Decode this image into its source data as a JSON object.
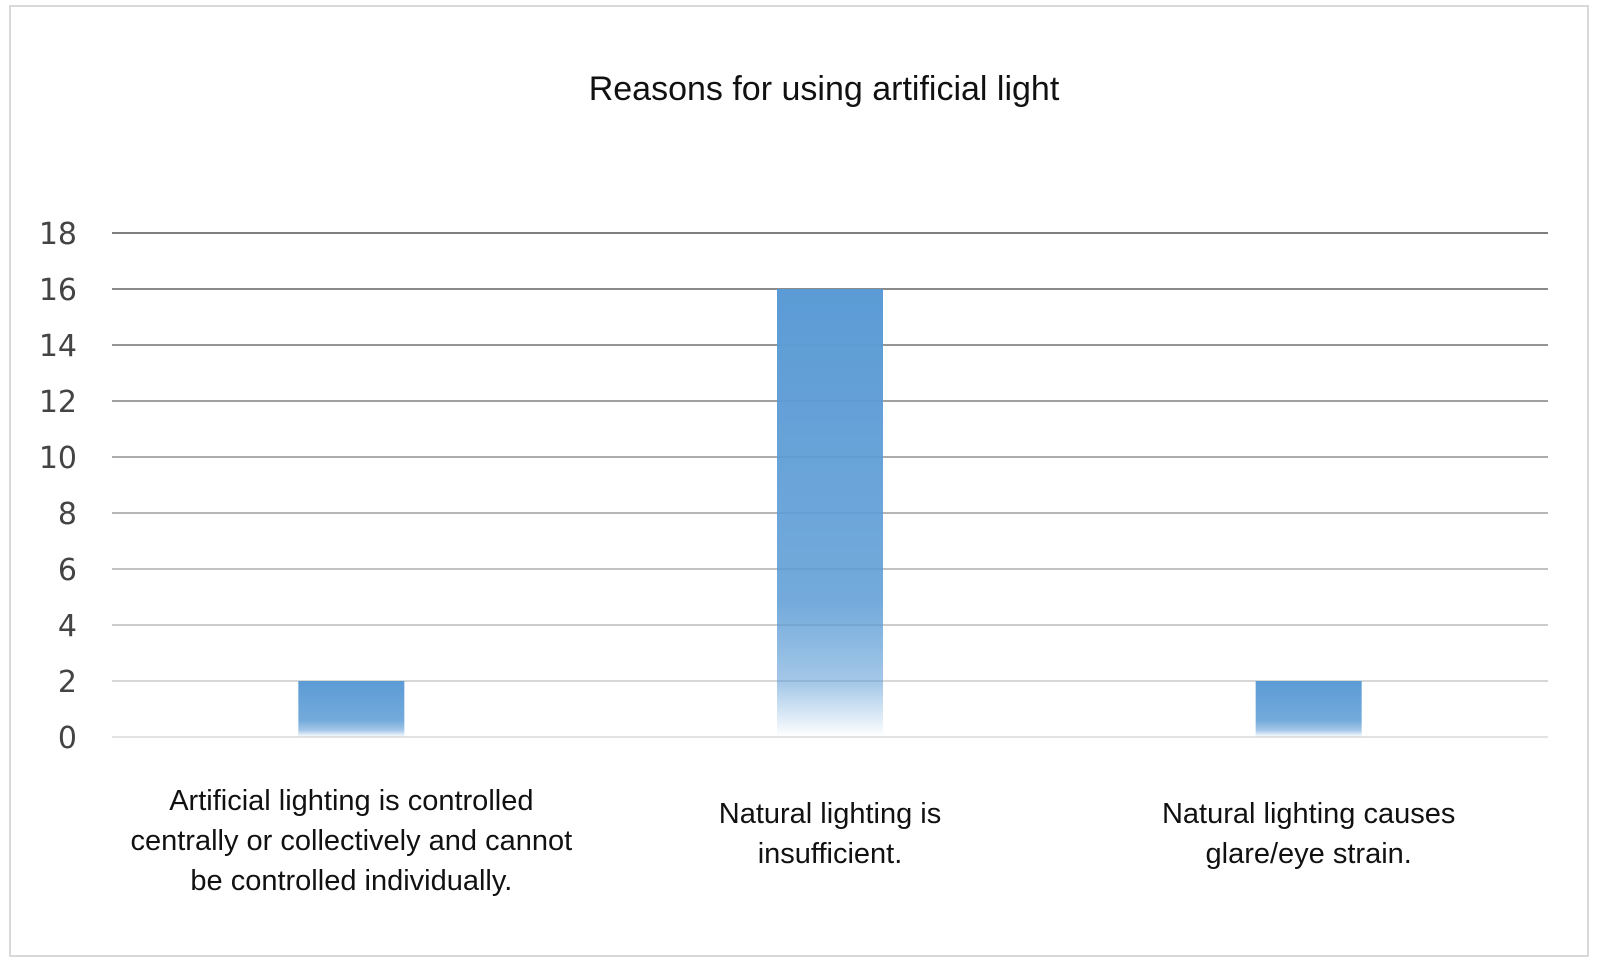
{
  "chart_data": {
    "type": "bar",
    "title": "Reasons for using artificial light",
    "xlabel": "",
    "ylabel": "",
    "categories": [
      "Artificial lighting is controlled centrally or collectively and cannot be controlled individually.",
      "Natural lighting is insufficient.",
      "Natural lighting causes glare/eye strain."
    ],
    "category_lines": [
      [
        "Artificial lighting is controlled",
        "centrally or collectively and cannot",
        "be controlled individually."
      ],
      [
        "Natural lighting is",
        "insufficient."
      ],
      [
        "Natural lighting causes",
        "glare/eye strain."
      ]
    ],
    "values": [
      2,
      16,
      2
    ],
    "ylim": [
      0,
      18
    ],
    "yticks": [
      0,
      2,
      4,
      6,
      8,
      10,
      12,
      14,
      16,
      18
    ],
    "grid": true,
    "legend": "none",
    "bar_color": "#5b9bd5"
  }
}
